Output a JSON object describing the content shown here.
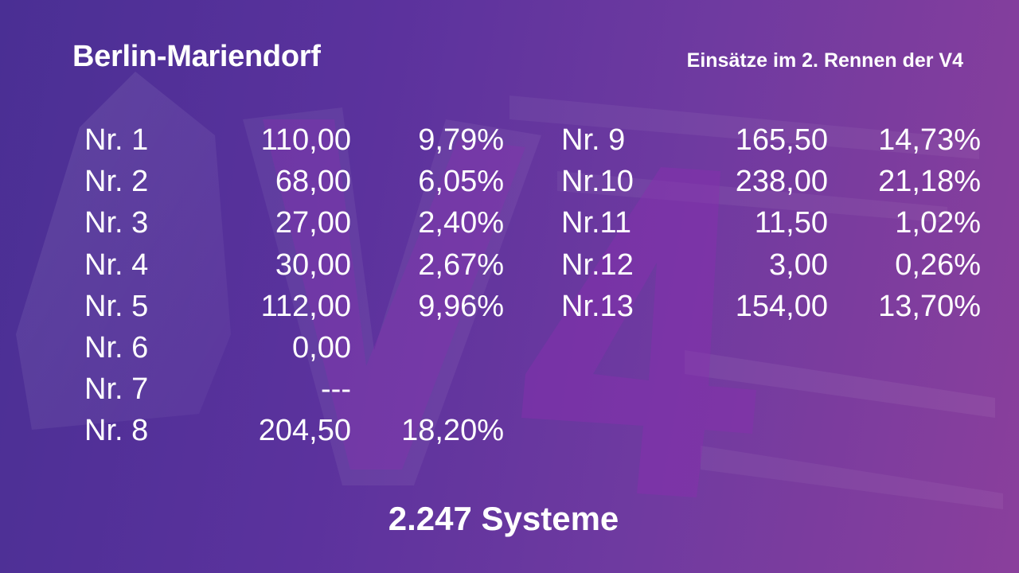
{
  "title": "Berlin-Mariendorf",
  "subtitle": "Einsätze im 2. Rennen der V4",
  "left_rows": [
    {
      "label": "Nr.  1",
      "amount": "110,00",
      "percent": "9,79%"
    },
    {
      "label": "Nr.  2",
      "amount": "68,00",
      "percent": "6,05%"
    },
    {
      "label": "Nr.  3",
      "amount": "27,00",
      "percent": "2,40%"
    },
    {
      "label": "Nr.  4",
      "amount": "30,00",
      "percent": "2,67%"
    },
    {
      "label": "Nr.  5",
      "amount": "112,00",
      "percent": "9,96%"
    },
    {
      "label": "Nr.  6",
      "amount": "0,00",
      "percent": ""
    },
    {
      "label": "Nr.  7",
      "amount": "---",
      "percent": ""
    },
    {
      "label": "Nr.  8",
      "amount": "204,50",
      "percent": "18,20%"
    }
  ],
  "right_rows": [
    {
      "label": "Nr.  9",
      "amount": "165,50",
      "percent": "14,73%"
    },
    {
      "label": "Nr.10",
      "amount": "238,00",
      "percent": "21,18%"
    },
    {
      "label": "Nr.11",
      "amount": "11,50",
      "percent": "1,02%"
    },
    {
      "label": "Nr.12",
      "amount": "3,00",
      "percent": "0,26%"
    },
    {
      "label": "Nr.13",
      "amount": "154,00",
      "percent": "13,70%"
    }
  ],
  "footer": "2.247 Systeme",
  "watermark": "V4",
  "colors": {
    "text": "#ffffff",
    "background_start": "#4a2f94",
    "background_end": "#8a3f9c",
    "watermark_accent": "#8a2fb0"
  }
}
